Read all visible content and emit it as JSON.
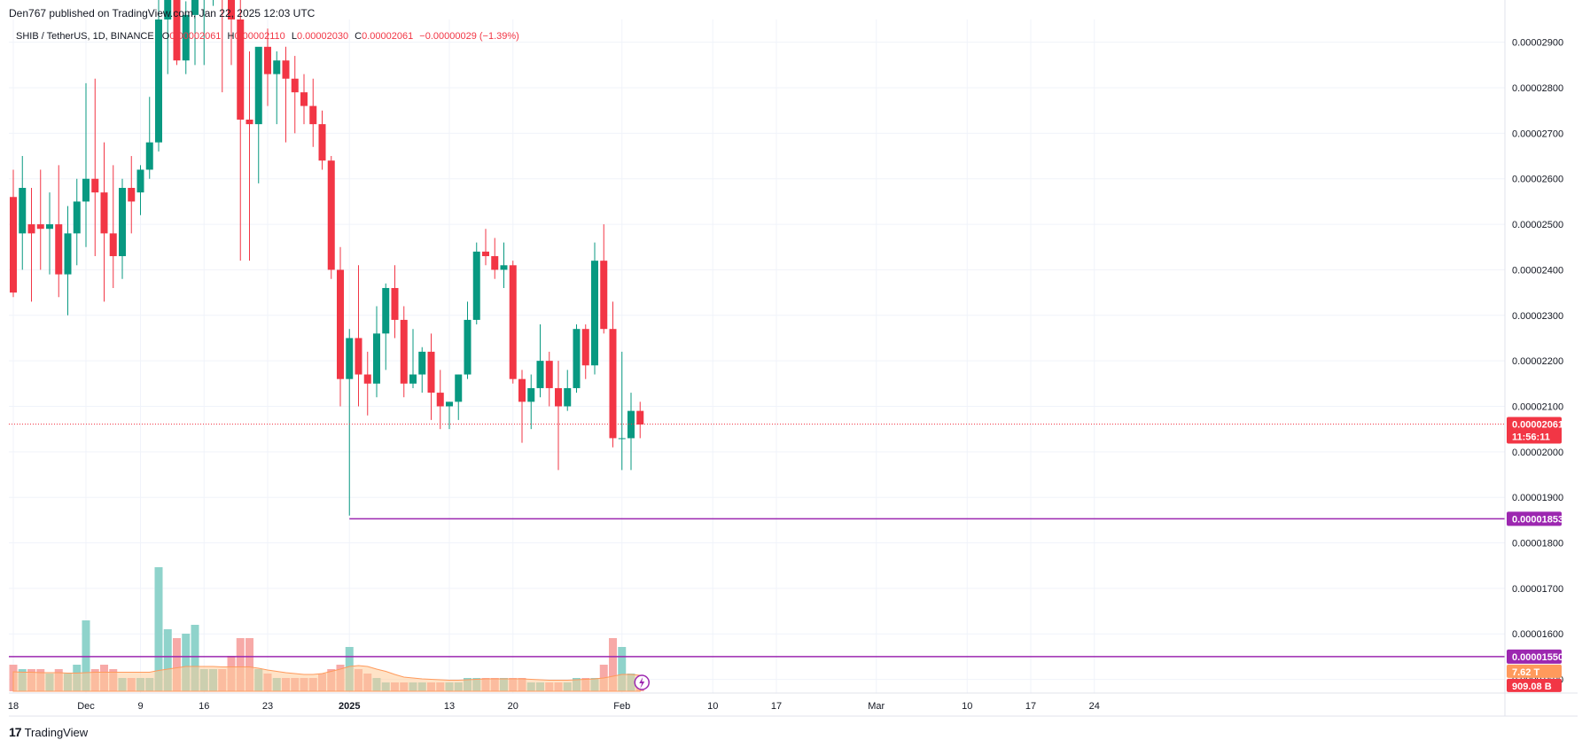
{
  "header": {
    "published": "Den767 published on TradingView.com, Jan 22, 2025 12:03 UTC"
  },
  "legend": {
    "symbol": "SHIB / TetherUS, 1D, BINANCE",
    "open_label": "O",
    "open_value": "0.00002061",
    "high_label": "H",
    "high_value": "0.00002110",
    "low_label": "L",
    "low_value": "0.00002030",
    "close_label": "C",
    "close_value": "0.00002061",
    "change": "−0.00000029 (−1.39%)"
  },
  "footer": {
    "brand": "TradingView"
  },
  "colors": {
    "up": "#089981",
    "down": "#f23645",
    "vol_up": "#8fd3cb",
    "vol_down": "#f7a9a7",
    "level": "#9c27b0",
    "vol_ma_fill": "#ffcc99"
  },
  "chart_data": {
    "type": "candlestick",
    "yaxis": {
      "min": 1.47e-05,
      "max": 2.95e-05,
      "ticks": [
        "0.00002900",
        "0.00002800",
        "0.00002700",
        "0.00002600",
        "0.00002500",
        "0.00002400",
        "0.00002300",
        "0.00002200",
        "0.00002100",
        "0.00002000",
        "0.00001900",
        "0.00001800",
        "0.00001700",
        "0.00001600",
        "0.00001500"
      ],
      "tick_values": [
        2.9e-05,
        2.8e-05,
        2.7e-05,
        2.6e-05,
        2.5e-05,
        2.4e-05,
        2.3e-05,
        2.2e-05,
        2.1e-05,
        2e-05,
        1.9e-05,
        1.8e-05,
        1.7e-05,
        1.6e-05,
        1.5e-05
      ]
    },
    "xaxis": {
      "labels": [
        "18",
        "Dec",
        "9",
        "16",
        "23",
        "2025",
        "13",
        "20",
        "Feb",
        "10",
        "17",
        "Mar",
        "10",
        "17",
        "24"
      ],
      "label_day_index": [
        0,
        8,
        14,
        21,
        28,
        37,
        48,
        55,
        67,
        77,
        84,
        95,
        105,
        112,
        119
      ]
    },
    "candles": [
      [
        2.56e-05,
        2.62e-05,
        2.34e-05,
        2.35e-05
      ],
      [
        2.48e-05,
        2.65e-05,
        2.4e-05,
        2.58e-05
      ],
      [
        2.5e-05,
        2.58e-05,
        2.33e-05,
        2.48e-05
      ],
      [
        2.5e-05,
        2.62e-05,
        2.4e-05,
        2.49e-05
      ],
      [
        2.49e-05,
        2.57e-05,
        2.39e-05,
        2.5e-05
      ],
      [
        2.5e-05,
        2.63e-05,
        2.34e-05,
        2.39e-05
      ],
      [
        2.39e-05,
        2.54e-05,
        2.3e-05,
        2.48e-05
      ],
      [
        2.48e-05,
        2.6e-05,
        2.41e-05,
        2.55e-05
      ],
      [
        2.55e-05,
        2.81e-05,
        2.45e-05,
        2.6e-05
      ],
      [
        2.6e-05,
        2.82e-05,
        2.43e-05,
        2.57e-05
      ],
      [
        2.57e-05,
        2.68e-05,
        2.33e-05,
        2.48e-05
      ],
      [
        2.48e-05,
        2.63e-05,
        2.36e-05,
        2.43e-05
      ],
      [
        2.43e-05,
        2.6e-05,
        2.38e-05,
        2.58e-05
      ],
      [
        2.58e-05,
        2.65e-05,
        2.48e-05,
        2.55e-05
      ],
      [
        2.57e-05,
        2.63e-05,
        2.52e-05,
        2.62e-05
      ],
      [
        2.62e-05,
        2.78e-05,
        2.6e-05,
        2.68e-05
      ],
      [
        2.68e-05,
        3.1e-05,
        2.66e-05,
        2.95e-05
      ],
      [
        2.95e-05,
        3.1e-05,
        2.83e-05,
        3e-05
      ],
      [
        3e-05,
        3.1e-05,
        2.85e-05,
        2.86e-05
      ],
      [
        2.86e-05,
        2.99e-05,
        2.83e-05,
        2.96e-05
      ],
      [
        2.96e-05,
        3.1e-05,
        2.85e-05,
        3e-05
      ],
      [
        3e-05,
        3.1e-05,
        2.85e-05,
        3.02e-05
      ],
      [
        3.02e-05,
        3.15e-05,
        2.98e-05,
        3.1e-05
      ],
      [
        3.1e-05,
        3.2e-05,
        2.79e-05,
        3.06e-05
      ],
      [
        3.06e-05,
        3.1e-05,
        2.85e-05,
        2.95e-05
      ],
      [
        2.95e-05,
        3.02e-05,
        2.42e-05,
        2.73e-05
      ],
      [
        2.73e-05,
        2.88e-05,
        2.42e-05,
        2.72e-05
      ],
      [
        2.72e-05,
        2.88e-05,
        2.59e-05,
        2.89e-05
      ],
      [
        2.89e-05,
        2.93e-05,
        2.76e-05,
        2.83e-05
      ],
      [
        2.83e-05,
        2.88e-05,
        2.72e-05,
        2.86e-05
      ],
      [
        2.86e-05,
        2.89e-05,
        2.68e-05,
        2.82e-05
      ],
      [
        2.82e-05,
        2.87e-05,
        2.7e-05,
        2.79e-05
      ],
      [
        2.79e-05,
        2.83e-05,
        2.72e-05,
        2.76e-05
      ],
      [
        2.76e-05,
        2.82e-05,
        2.67e-05,
        2.72e-05
      ],
      [
        2.72e-05,
        2.75e-05,
        2.62e-05,
        2.64e-05
      ],
      [
        2.64e-05,
        2.65e-05,
        2.38e-05,
        2.4e-05
      ],
      [
        2.4e-05,
        2.45e-05,
        2.1e-05,
        2.16e-05
      ],
      [
        2.16e-05,
        2.27e-05,
        1.86e-05,
        2.25e-05
      ],
      [
        2.25e-05,
        2.41e-05,
        2.1e-05,
        2.17e-05
      ],
      [
        2.17e-05,
        2.22e-05,
        2.08e-05,
        2.15e-05
      ],
      [
        2.15e-05,
        2.32e-05,
        2.12e-05,
        2.26e-05
      ],
      [
        2.26e-05,
        2.37e-05,
        2.18e-05,
        2.36e-05
      ],
      [
        2.36e-05,
        2.41e-05,
        2.25e-05,
        2.29e-05
      ],
      [
        2.29e-05,
        2.32e-05,
        2.12e-05,
        2.15e-05
      ],
      [
        2.15e-05,
        2.27e-05,
        2.14e-05,
        2.17e-05
      ],
      [
        2.17e-05,
        2.23e-05,
        2.13e-05,
        2.22e-05
      ],
      [
        2.22e-05,
        2.26e-05,
        2.07e-05,
        2.13e-05
      ],
      [
        2.13e-05,
        2.18e-05,
        2.05e-05,
        2.1e-05
      ],
      [
        2.1e-05,
        2.11e-05,
        2.05e-05,
        2.11e-05
      ],
      [
        2.11e-05,
        2.17e-05,
        2.07e-05,
        2.17e-05
      ],
      [
        2.17e-05,
        2.33e-05,
        2.16e-05,
        2.29e-05
      ],
      [
        2.29e-05,
        2.46e-05,
        2.28e-05,
        2.44e-05
      ],
      [
        2.44e-05,
        2.49e-05,
        2.41e-05,
        2.43e-05
      ],
      [
        2.43e-05,
        2.47e-05,
        2.38e-05,
        2.4e-05
      ],
      [
        2.4e-05,
        2.46e-05,
        2.36e-05,
        2.41e-05
      ],
      [
        2.41e-05,
        2.42e-05,
        2.15e-05,
        2.16e-05
      ],
      [
        2.16e-05,
        2.18e-05,
        2.02e-05,
        2.11e-05
      ],
      [
        2.11e-05,
        2.17e-05,
        2.05e-05,
        2.14e-05
      ],
      [
        2.14e-05,
        2.28e-05,
        2.12e-05,
        2.2e-05
      ],
      [
        2.2e-05,
        2.22e-05,
        2.1e-05,
        2.14e-05
      ],
      [
        2.14e-05,
        2.2e-05,
        1.96e-05,
        2.1e-05
      ],
      [
        2.1e-05,
        2.18e-05,
        2.09e-05,
        2.14e-05
      ],
      [
        2.14e-05,
        2.28e-05,
        2.13e-05,
        2.27e-05
      ],
      [
        2.27e-05,
        2.28e-05,
        2.16e-05,
        2.19e-05
      ],
      [
        2.19e-05,
        2.46e-05,
        2.17e-05,
        2.42e-05
      ],
      [
        2.42e-05,
        2.5e-05,
        2.26e-05,
        2.27e-05
      ],
      [
        2.27e-05,
        2.33e-05,
        2.01e-05,
        2.03e-05
      ],
      [
        2.03e-05,
        2.22e-05,
        1.96e-05,
        2.03e-05
      ],
      [
        2.03e-05,
        2.13e-05,
        1.96e-05,
        2.09e-05
      ],
      [
        2.09e-05,
        2.11e-05,
        2.03e-05,
        2.06e-05
      ]
    ],
    "volume_max": 3.8,
    "volume": [
      0.6,
      0.5,
      0.5,
      0.5,
      0.4,
      0.5,
      0.4,
      0.6,
      1.6,
      0.5,
      0.6,
      0.5,
      0.3,
      0.3,
      0.3,
      0.3,
      2.8,
      1.4,
      1.2,
      1.3,
      1.5,
      0.5,
      0.5,
      0.5,
      0.8,
      1.2,
      1.2,
      0.5,
      0.4,
      0.3,
      0.3,
      0.3,
      0.3,
      0.3,
      0.4,
      0.5,
      0.6,
      1.0,
      0.5,
      0.4,
      0.3,
      0.2,
      0.2,
      0.2,
      0.2,
      0.2,
      0.2,
      0.2,
      0.2,
      0.2,
      0.3,
      0.3,
      0.3,
      0.3,
      0.3,
      0.3,
      0.3,
      0.2,
      0.2,
      0.2,
      0.2,
      0.2,
      0.3,
      0.3,
      0.3,
      0.6,
      1.2,
      1.0,
      0.4,
      0.3
    ],
    "volume_ma": [
      0.44,
      0.43,
      0.43,
      0.42,
      0.42,
      0.42,
      0.41,
      0.41,
      0.42,
      0.43,
      0.43,
      0.43,
      0.43,
      0.43,
      0.43,
      0.43,
      0.47,
      0.5,
      0.53,
      0.56,
      0.56,
      0.56,
      0.56,
      0.55,
      0.55,
      0.55,
      0.55,
      0.52,
      0.48,
      0.45,
      0.42,
      0.4,
      0.38,
      0.38,
      0.4,
      0.45,
      0.5,
      0.56,
      0.58,
      0.56,
      0.5,
      0.45,
      0.38,
      0.32,
      0.3,
      0.28,
      0.27,
      0.26,
      0.25,
      0.25,
      0.26,
      0.27,
      0.28,
      0.28,
      0.28,
      0.28,
      0.28,
      0.27,
      0.26,
      0.25,
      0.25,
      0.25,
      0.26,
      0.27,
      0.28,
      0.3,
      0.34,
      0.38,
      0.38,
      0.36
    ],
    "current_price_label": "0.00002061",
    "countdown_label": "11:56:11",
    "current_price": 2.061e-05,
    "support_level": 1.853e-05,
    "support_label": "0.00001853",
    "support_start_day": 37,
    "volume_level": 1.55e-05,
    "volume_level_label": "0.00001550",
    "volume_badge": "7.62 T",
    "volume_ma_badge": "909.08 B"
  }
}
